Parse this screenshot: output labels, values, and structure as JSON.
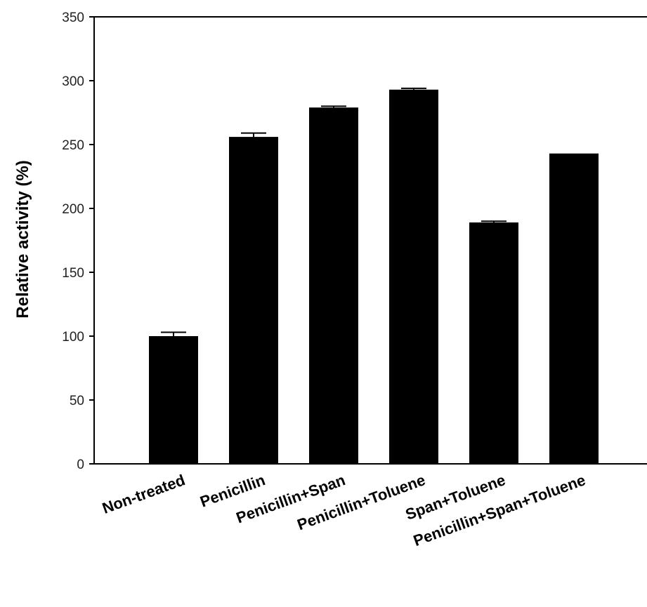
{
  "chart_data": {
    "type": "bar",
    "categories": [
      "Non-treated",
      "Penicillin",
      "Penicillin+Span",
      "Penicillin+Toluene",
      "Span+Toluene",
      "Penicillin+Span+Toluene"
    ],
    "values": [
      100,
      256,
      279,
      293,
      189,
      243
    ],
    "errors": [
      3,
      3,
      1,
      1,
      1,
      0
    ],
    "title": "",
    "xlabel": "",
    "ylabel": "Relative activity (%)",
    "ylim": [
      0,
      350
    ],
    "yticks": [
      0,
      50,
      100,
      150,
      200,
      250,
      300,
      350
    ],
    "grid": false,
    "legend": "none",
    "bar_color": "#000000"
  }
}
